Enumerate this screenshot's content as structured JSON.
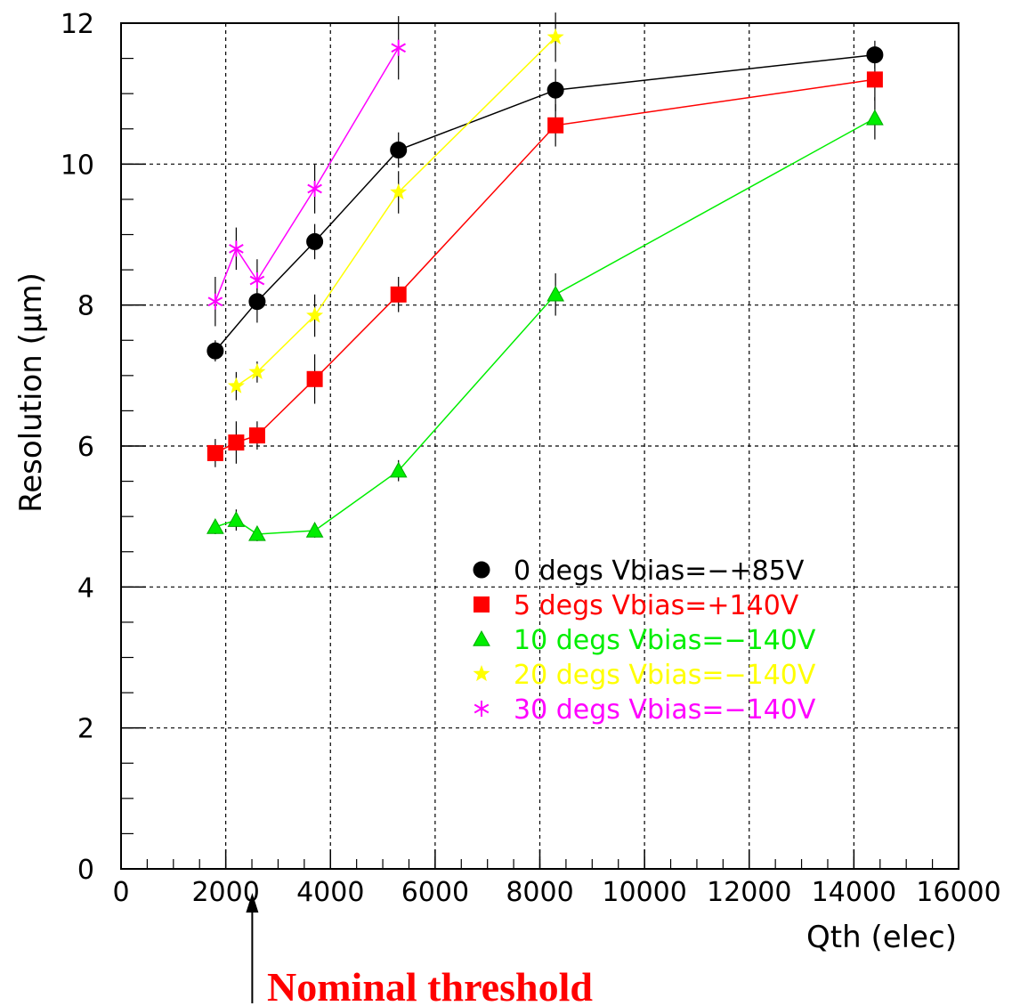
{
  "chart_data": {
    "type": "line",
    "title": "",
    "xlabel": "Qth (elec)",
    "ylabel": "Resolution (μm)",
    "xlim": [
      0,
      16000
    ],
    "ylim": [
      0,
      12
    ],
    "grid": true,
    "xticks": [
      "0",
      "2000",
      "4000",
      "6000",
      "8000",
      "10000",
      "12000",
      "14000",
      "16000"
    ],
    "yticks": [
      "0",
      "2",
      "4",
      "6",
      "8",
      "10",
      "12"
    ],
    "legend_position": "center-right",
    "series": [
      {
        "name": "0 degs Vbias=−+85V",
        "color": "#000000",
        "marker": "circle",
        "x": [
          1800,
          2600,
          3700,
          5300,
          8300,
          14400
        ],
        "y": [
          7.35,
          8.05,
          8.9,
          10.2,
          11.05,
          11.55
        ],
        "err": [
          0.15,
          0.3,
          0.25,
          0.25,
          0.3,
          0.2
        ]
      },
      {
        "name": "5 degs Vbias=+140V",
        "color": "#ff0000",
        "marker": "square",
        "x": [
          1800,
          2200,
          2600,
          3700,
          5300,
          8300,
          14400
        ],
        "y": [
          5.9,
          6.05,
          6.15,
          6.95,
          8.15,
          10.55,
          11.2
        ],
        "err": [
          0.2,
          0.3,
          0.2,
          0.35,
          0.25,
          0.3,
          0.3
        ]
      },
      {
        "name": "10 degs Vbias=−140V",
        "color": "#00ee00",
        "marker": "triangle",
        "x": [
          1800,
          2200,
          2600,
          3700,
          5300,
          8300,
          14400
        ],
        "y": [
          4.85,
          4.95,
          4.75,
          4.8,
          5.65,
          8.15,
          10.65
        ],
        "err": [
          0.1,
          0.15,
          0.1,
          0.1,
          0.15,
          0.3,
          0.3
        ]
      },
      {
        "name": "20 degs Vbias=−140V",
        "color": "#ffff00",
        "marker": "star",
        "x": [
          2200,
          2600,
          3700,
          5300,
          8300
        ],
        "y": [
          6.85,
          7.05,
          7.85,
          9.6,
          11.8
        ],
        "err": [
          0.2,
          0.15,
          0.3,
          0.3,
          0.35
        ]
      },
      {
        "name": "30 degs Vbias=−140V",
        "color": "#ff00ff",
        "marker": "asterisk",
        "x": [
          1800,
          2200,
          2600,
          3700,
          5300
        ],
        "y": [
          8.05,
          8.8,
          8.35,
          9.65,
          11.65
        ],
        "err": [
          0.35,
          0.3,
          0.3,
          0.35,
          0.45
        ]
      }
    ],
    "annotations": [
      {
        "text": "Nominal threshold",
        "color": "#ff0000",
        "arrow_x": 2200
      }
    ]
  }
}
